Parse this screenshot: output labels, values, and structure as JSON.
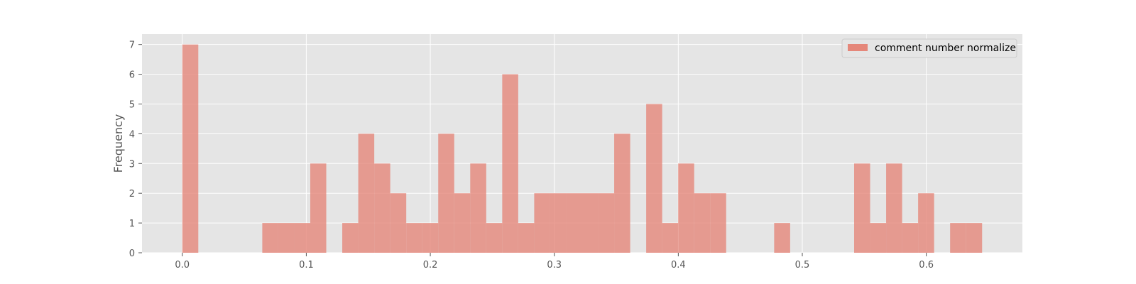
{
  "chart_data": {
    "type": "bar",
    "title": "",
    "xlabel": "",
    "ylabel": "Frequency",
    "xlim": [
      -0.0325,
      0.6775
    ],
    "ylim": [
      0,
      7.35
    ],
    "grid": true,
    "legend_position": "top-right",
    "x_ticks": [
      0.0,
      0.1,
      0.2,
      0.3,
      0.4,
      0.5,
      0.6
    ],
    "x_tick_labels": [
      "0.0",
      "0.1",
      "0.2",
      "0.3",
      "0.4",
      "0.5",
      "0.6"
    ],
    "y_ticks": [
      0,
      1,
      2,
      3,
      4,
      5,
      6,
      7
    ],
    "y_tick_labels": [
      "0",
      "1",
      "2",
      "3",
      "4",
      "5",
      "6",
      "7"
    ],
    "bin_start": 0.0,
    "bin_width": 0.0129,
    "series": [
      {
        "name": "comment number normalize",
        "values": [
          7,
          0,
          0,
          0,
          0,
          1,
          1,
          1,
          3,
          0,
          1,
          4,
          3,
          2,
          1,
          1,
          4,
          2,
          3,
          1,
          6,
          1,
          2,
          2,
          2,
          2,
          2,
          4,
          0,
          5,
          1,
          3,
          2,
          2,
          0,
          0,
          0,
          1,
          0,
          0,
          0,
          0,
          3,
          1,
          3,
          1,
          2,
          0,
          1,
          1
        ]
      }
    ],
    "colors": {
      "bar": "#e5877a",
      "plot_background": "#e5e5e5",
      "grid": "#ffffff"
    }
  }
}
